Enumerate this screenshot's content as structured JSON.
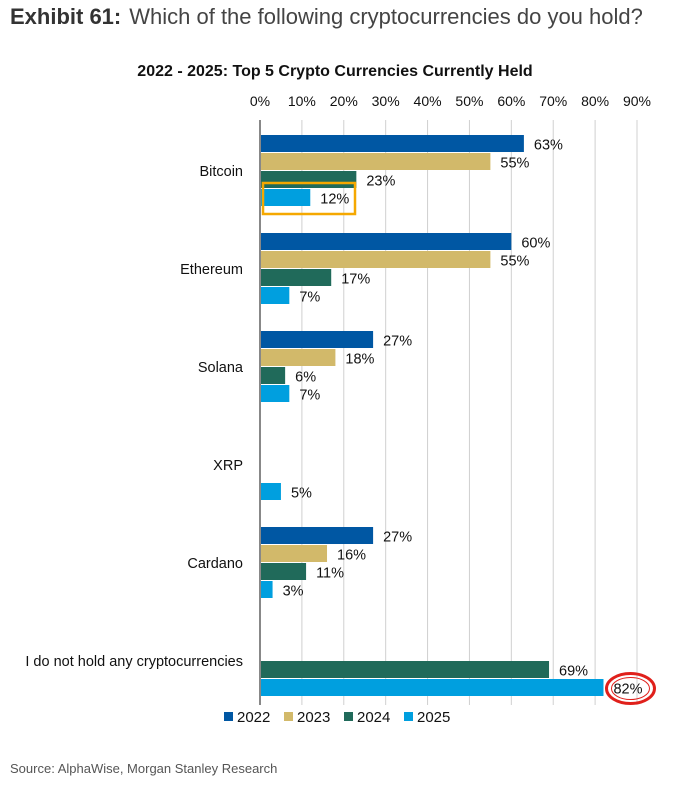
{
  "exhibit": {
    "label": "Exhibit 61:",
    "question": "Which of the following cryptocurrencies do you hold?"
  },
  "source": "Source: AlphaWise, Morgan Stanley Research",
  "chart_data": {
    "type": "bar",
    "orientation": "horizontal",
    "title": "2022 - 2025: Top 5 Crypto Currencies Currently Held",
    "categories": [
      "Bitcoin",
      "Ethereum",
      "Solana",
      "XRP",
      "Cardano",
      "I do not hold any cryptocurrencies"
    ],
    "series": [
      {
        "name": "2022",
        "color": "#0057A3",
        "values": [
          63,
          60,
          27,
          null,
          27,
          null
        ]
      },
      {
        "name": "2023",
        "color": "#D2B96A",
        "values": [
          55,
          55,
          18,
          null,
          16,
          null
        ]
      },
      {
        "name": "2024",
        "color": "#206A5A",
        "values": [
          23,
          17,
          6,
          null,
          11,
          69
        ]
      },
      {
        "name": "2025",
        "color": "#009FDF",
        "values": [
          12,
          7,
          7,
          5,
          3,
          82
        ]
      }
    ],
    "xlim": [
      0,
      90
    ],
    "xticks": [
      "0%",
      "10%",
      "20%",
      "30%",
      "40%",
      "50%",
      "60%",
      "70%",
      "80%",
      "90%"
    ],
    "value_suffix": "%",
    "grid": true,
    "legend": "bottom",
    "highlights": [
      {
        "category": "Bitcoin",
        "series": "2025",
        "style": "orange box",
        "color": "#F5A800"
      },
      {
        "category": "I do not hold any cryptocurrencies",
        "series": "2025",
        "style": "red circle",
        "color": "#E0201B"
      }
    ]
  }
}
